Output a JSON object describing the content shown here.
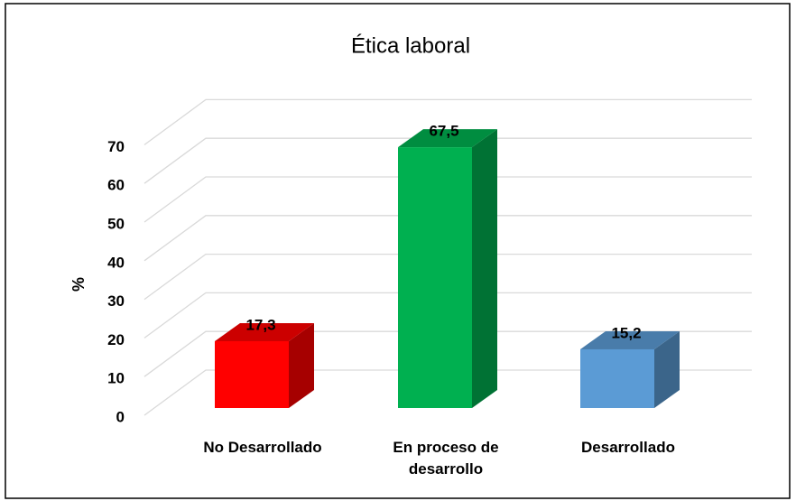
{
  "chart_data": {
    "type": "bar3d",
    "title": "Ética laboral",
    "ylabel": "%",
    "categories": [
      "No Desarrollado",
      "En proceso de desarrollo",
      "Desarrollado"
    ],
    "values": [
      17.3,
      67.5,
      15.2
    ],
    "value_labels": [
      "17,3",
      "67,5",
      "15,2"
    ],
    "colors": [
      "#ff0000",
      "#00b050",
      "#5b9bd5"
    ],
    "ylim": [
      0,
      70
    ],
    "yticks": [
      0,
      10,
      20,
      30,
      40,
      50,
      60,
      70
    ],
    "grid": true
  }
}
